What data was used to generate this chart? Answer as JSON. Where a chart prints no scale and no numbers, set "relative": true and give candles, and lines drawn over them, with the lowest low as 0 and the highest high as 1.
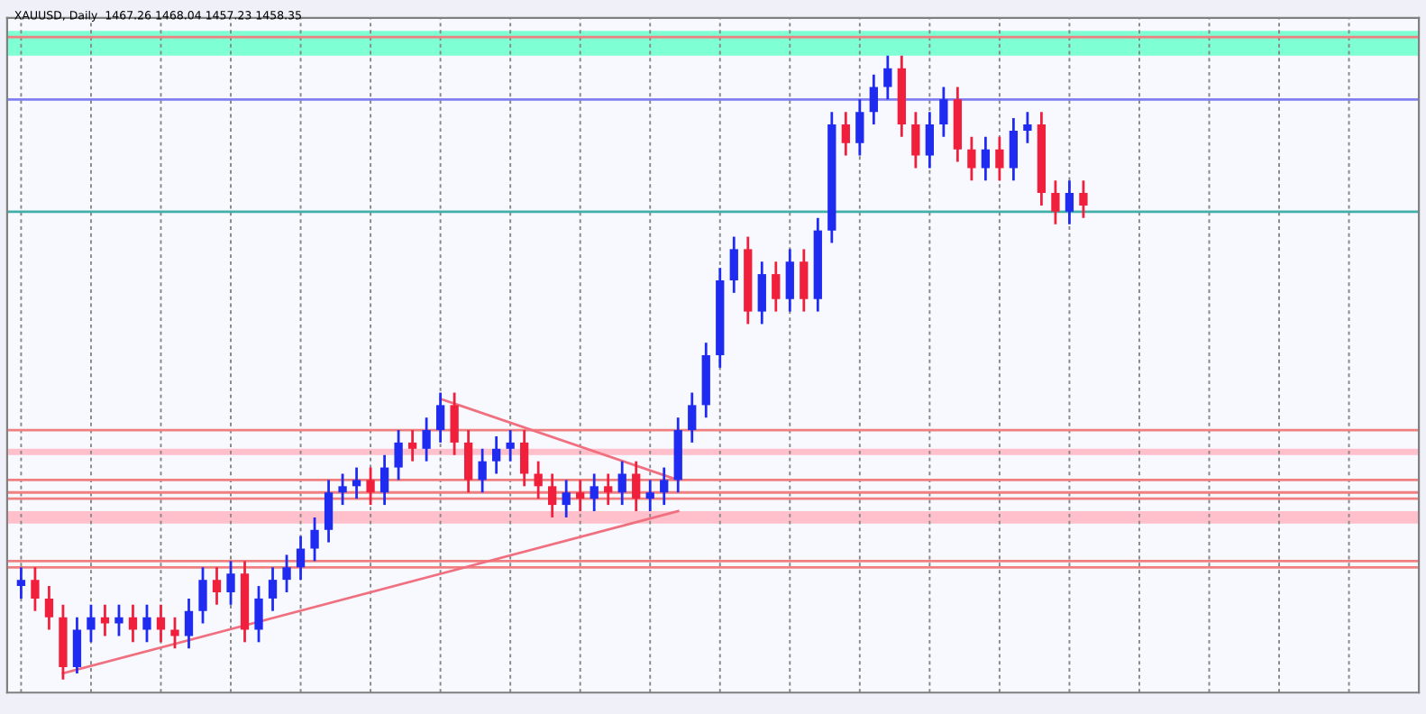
{
  "chart_data": {
    "type": "candlestick",
    "title": "XAUUSD, Daily  1467.26 1468.04 1457.23 1458.35",
    "relative": true,
    "tick_labels": false,
    "grid": "x",
    "categories": [
      null,
      null,
      null,
      null,
      null,
      null,
      null,
      null,
      null,
      null,
      null,
      null,
      null,
      null,
      null,
      null,
      null,
      null,
      null,
      null,
      null,
      null,
      null,
      null,
      null,
      null,
      null,
      null,
      null,
      null,
      null,
      null,
      null,
      null,
      null,
      null,
      null,
      null,
      null,
      null,
      null,
      null,
      null,
      null,
      null,
      null,
      null,
      null,
      null,
      null,
      null,
      null,
      null,
      null,
      null,
      null,
      null,
      null,
      null,
      null,
      null,
      null,
      null,
      null,
      null,
      null,
      null,
      null,
      null,
      null,
      null,
      null,
      null,
      null,
      null,
      null,
      null,
      null,
      null,
      null,
      null,
      null,
      null,
      null,
      null,
      null,
      null,
      null,
      null,
      null,
      null,
      null,
      null,
      null,
      null,
      null,
      null,
      null,
      null,
      null
    ],
    "ohlc": [
      [
        0.15,
        0.18,
        0.13,
        0.16
      ],
      [
        0.16,
        0.18,
        0.11,
        0.13
      ],
      [
        0.13,
        0.15,
        0.08,
        0.1
      ],
      [
        0.1,
        0.12,
        0,
        0.02
      ],
      [
        0.02,
        0.1,
        0.01,
        0.08
      ],
      [
        0.08,
        0.12,
        0.06,
        0.1
      ],
      [
        0.1,
        0.12,
        0.07,
        0.09
      ],
      [
        0.09,
        0.12,
        0.07,
        0.1
      ],
      [
        0.1,
        0.12,
        0.06,
        0.08
      ],
      [
        0.08,
        0.12,
        0.06,
        0.1
      ],
      [
        0.1,
        0.12,
        0.06,
        0.08
      ],
      [
        0.08,
        0.1,
        0.05,
        0.07
      ],
      [
        0.07,
        0.13,
        0.05,
        0.11
      ],
      [
        0.11,
        0.18,
        0.09,
        0.16
      ],
      [
        0.16,
        0.18,
        0.12,
        0.14
      ],
      [
        0.14,
        0.19,
        0.12,
        0.17
      ],
      [
        0.17,
        0.19,
        0.06,
        0.08
      ],
      [
        0.08,
        0.15,
        0.06,
        0.13
      ],
      [
        0.13,
        0.18,
        0.11,
        0.16
      ],
      [
        0.16,
        0.2,
        0.14,
        0.18
      ],
      [
        0.18,
        0.23,
        0.16,
        0.21
      ],
      [
        0.21,
        0.26,
        0.19,
        0.24
      ],
      [
        0.24,
        0.32,
        0.22,
        0.3
      ],
      [
        0.3,
        0.33,
        0.28,
        0.31
      ],
      [
        0.31,
        0.34,
        0.29,
        0.32
      ],
      [
        0.32,
        0.34,
        0.28,
        0.3
      ],
      [
        0.3,
        0.36,
        0.28,
        0.34
      ],
      [
        0.34,
        0.4,
        0.32,
        0.38
      ],
      [
        0.38,
        0.4,
        0.35,
        0.37
      ],
      [
        0.37,
        0.42,
        0.35,
        0.4
      ],
      [
        0.4,
        0.46,
        0.38,
        0.44
      ],
      [
        0.44,
        0.46,
        0.36,
        0.38
      ],
      [
        0.38,
        0.4,
        0.3,
        0.32
      ],
      [
        0.32,
        0.37,
        0.3,
        0.35
      ],
      [
        0.35,
        0.39,
        0.33,
        0.37
      ],
      [
        0.37,
        0.4,
        0.35,
        0.38
      ],
      [
        0.38,
        0.4,
        0.31,
        0.33
      ],
      [
        0.33,
        0.35,
        0.29,
        0.31
      ],
      [
        0.31,
        0.33,
        0.26,
        0.28
      ],
      [
        0.28,
        0.32,
        0.26,
        0.3
      ],
      [
        0.3,
        0.32,
        0.27,
        0.29
      ],
      [
        0.29,
        0.33,
        0.27,
        0.31
      ],
      [
        0.31,
        0.33,
        0.28,
        0.3
      ],
      [
        0.3,
        0.35,
        0.28,
        0.33
      ],
      [
        0.33,
        0.35,
        0.27,
        0.29
      ],
      [
        0.29,
        0.32,
        0.27,
        0.3
      ],
      [
        0.3,
        0.34,
        0.28,
        0.32
      ],
      [
        0.32,
        0.42,
        0.3,
        0.4
      ],
      [
        0.4,
        0.46,
        0.38,
        0.44
      ],
      [
        0.44,
        0.54,
        0.42,
        0.52
      ],
      [
        0.52,
        0.66,
        0.5,
        0.64
      ],
      [
        0.64,
        0.71,
        0.62,
        0.69
      ],
      [
        0.69,
        0.71,
        0.57,
        0.59
      ],
      [
        0.59,
        0.67,
        0.57,
        0.65
      ],
      [
        0.65,
        0.67,
        0.59,
        0.61
      ],
      [
        0.61,
        0.69,
        0.59,
        0.67
      ],
      [
        0.67,
        0.69,
        0.59,
        0.61
      ],
      [
        0.61,
        0.74,
        0.59,
        0.72
      ],
      [
        0.72,
        0.91,
        0.7,
        0.89
      ],
      [
        0.89,
        0.91,
        0.84,
        0.86
      ],
      [
        0.86,
        0.93,
        0.84,
        0.91
      ],
      [
        0.91,
        0.97,
        0.89,
        0.95
      ],
      [
        0.95,
        1,
        0.93,
        0.98
      ],
      [
        0.98,
        1,
        0.87,
        0.89
      ],
      [
        0.89,
        0.91,
        0.82,
        0.84
      ],
      [
        0.84,
        0.91,
        0.82,
        0.89
      ],
      [
        0.89,
        0.95,
        0.87,
        0.93
      ],
      [
        0.93,
        0.95,
        0.83,
        0.85
      ],
      [
        0.85,
        0.87,
        0.8,
        0.82
      ],
      [
        0.82,
        0.87,
        0.8,
        0.85
      ],
      [
        0.85,
        0.87,
        0.8,
        0.82
      ],
      [
        0.82,
        0.9,
        0.8,
        0.88
      ],
      [
        0.88,
        0.91,
        0.86,
        0.89
      ],
      [
        0.89,
        0.91,
        0.76,
        0.78
      ],
      [
        0.78,
        0.8,
        0.73,
        0.75
      ],
      [
        0.75,
        0.8,
        0.73,
        0.78
      ],
      [
        0.78,
        0.8,
        0.74,
        0.76
      ],
      null,
      null,
      null,
      null,
      null,
      null,
      null,
      null,
      null,
      null,
      null,
      null,
      null,
      null,
      null,
      null,
      null,
      null,
      null,
      null,
      null,
      null,
      null
    ],
    "colors": [
      "#1f2bf0",
      "#f0203c",
      "#f0203c",
      "#f0203c",
      "#1f2bf0",
      "#1f2bf0",
      "#f0203c",
      "#1f2bf0",
      "#f0203c",
      "#1f2bf0",
      "#f0203c",
      "#f0203c",
      "#1f2bf0",
      "#1f2bf0",
      "#f0203c",
      "#1f2bf0",
      "#f0203c",
      "#1f2bf0",
      "#1f2bf0",
      "#1f2bf0",
      "#1f2bf0",
      "#1f2bf0",
      "#1f2bf0",
      "#1f2bf0",
      "#1f2bf0",
      "#f0203c",
      "#1f2bf0",
      "#1f2bf0",
      "#f0203c",
      "#1f2bf0",
      "#1f2bf0",
      "#f0203c",
      "#f0203c",
      "#1f2bf0",
      "#1f2bf0",
      "#1f2bf0",
      "#f0203c",
      "#f0203c",
      "#f0203c",
      "#1f2bf0",
      "#f0203c",
      "#1f2bf0",
      "#f0203c",
      "#1f2bf0",
      "#f0203c",
      "#1f2bf0",
      "#1f2bf0",
      "#1f2bf0",
      "#1f2bf0",
      "#1f2bf0",
      "#1f2bf0",
      "#1f2bf0",
      "#f0203c",
      "#1f2bf0",
      "#f0203c",
      "#1f2bf0",
      "#f0203c",
      "#1f2bf0",
      "#1f2bf0",
      "#f0203c",
      "#1f2bf0",
      "#1f2bf0",
      "#1f2bf0",
      "#f0203c",
      "#f0203c",
      "#1f2bf0",
      "#1f2bf0",
      "#f0203c",
      "#f0203c",
      "#1f2bf0",
      "#f0203c",
      "#1f2bf0",
      "#1f2bf0",
      "#f0203c",
      "#f0203c",
      "#1f2bf0",
      "#f0203c",
      null,
      null,
      null,
      null,
      null,
      null,
      null,
      null,
      null,
      null,
      null,
      null,
      null,
      null,
      null,
      null,
      null,
      null,
      null,
      null,
      null,
      null,
      null
    ],
    "series": [
      {
        "type": "line",
        "color": "#f07080",
        "values": [
          null,
          null,
          null,
          0.01,
          null,
          null,
          null,
          null,
          null,
          null,
          null,
          null,
          null,
          null,
          null,
          null,
          null,
          null,
          null,
          null,
          null,
          null,
          null,
          null,
          null,
          null,
          null,
          null,
          null,
          null,
          null,
          null,
          null,
          null,
          null,
          null,
          null,
          null,
          null,
          null,
          null,
          null,
          null,
          null,
          null,
          null,
          null,
          0.27,
          null,
          null,
          null,
          null,
          null,
          null,
          null,
          null,
          null,
          null,
          null,
          null,
          null,
          null,
          null,
          null,
          null,
          null,
          null,
          null,
          null,
          null,
          null,
          null,
          null,
          null,
          null,
          null,
          null,
          null,
          null,
          null,
          null,
          null,
          null,
          null,
          null,
          null,
          null,
          null,
          null,
          null,
          null,
          null,
          null,
          null,
          null,
          null,
          null,
          null,
          null,
          null
        ]
      },
      {
        "type": "line",
        "color": "#f07080",
        "values": [
          null,
          null,
          null,
          null,
          null,
          null,
          null,
          null,
          null,
          null,
          null,
          null,
          null,
          null,
          null,
          null,
          null,
          null,
          null,
          null,
          null,
          null,
          null,
          null,
          null,
          null,
          null,
          null,
          null,
          null,
          0.45,
          null,
          null,
          null,
          null,
          null,
          null,
          null,
          null,
          null,
          null,
          null,
          null,
          null,
          null,
          null,
          null,
          0.32,
          null,
          null,
          null,
          null,
          null,
          null,
          null,
          null,
          null,
          null,
          null,
          null,
          null,
          null,
          null,
          null,
          null,
          null,
          null,
          null,
          null,
          null,
          null,
          null,
          null,
          null,
          null,
          null,
          null,
          null,
          null,
          null,
          null,
          null,
          null,
          null,
          null,
          null,
          null,
          null,
          null,
          null,
          null,
          null,
          null,
          null,
          null,
          null,
          null,
          null,
          null,
          null
        ]
      }
    ],
    "ref_lines": [
      {
        "axis": "y",
        "value": 1.03,
        "color": "#f08080"
      },
      {
        "axis": "y",
        "value": 0.93,
        "color": "#8080f0"
      },
      {
        "axis": "y",
        "value": 0.75,
        "color": "#40b0a8"
      },
      {
        "axis": "y",
        "value": 0.4,
        "color": "#f08080"
      },
      {
        "axis": "y",
        "value": 0.32,
        "color": "#f08080"
      },
      {
        "axis": "y",
        "value": 0.3,
        "color": "#f08080"
      },
      {
        "axis": "y",
        "value": 0.29,
        "color": "#f08080"
      },
      {
        "axis": "y",
        "value": 0.19,
        "color": "#f08080"
      },
      {
        "axis": "y",
        "value": 0.18,
        "color": "#f08080"
      }
    ],
    "bands": [
      {
        "axis": "y",
        "from": 1.0,
        "to": 1.04,
        "color": "#7fffd4"
      },
      {
        "axis": "y",
        "from": 0.36,
        "to": 0.37,
        "color": "#ffc0cb"
      },
      {
        "axis": "y",
        "from": 0.25,
        "to": 0.27,
        "color": "#ffc0cb"
      }
    ]
  }
}
